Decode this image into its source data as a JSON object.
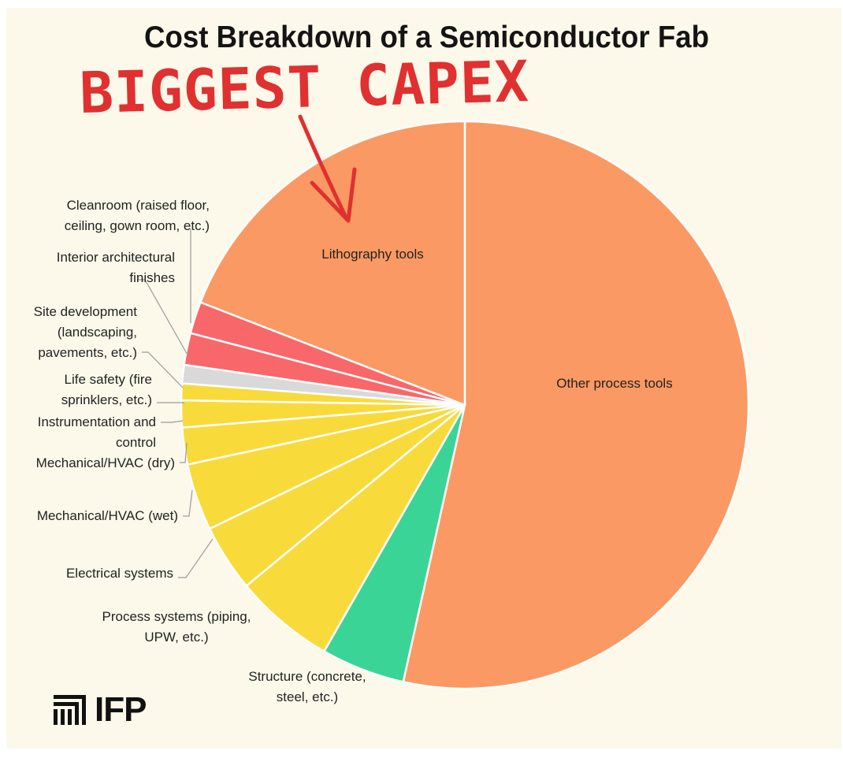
{
  "title": "Cost Breakdown of a Semiconductor Fab",
  "annotation": "BIGGEST CAPEX",
  "logo": {
    "text": "IFP",
    "icon": "ifp-logo-icon"
  },
  "colors": {
    "background": "#fcf8ea",
    "process_tools": "#fa9963",
    "facility_red": "#f8676a",
    "life_safety": "#d9d9d9",
    "building_systems": "#f8da3b",
    "structure": "#3ad596",
    "annotation": "#e03030"
  },
  "chart_data": {
    "type": "pie",
    "title": "Cost Breakdown of a Semiconductor Fab",
    "unit": "share of fab construction cost (%)",
    "start": "12 o'clock, clockwise",
    "slices": [
      {
        "label": "Other process tools",
        "value": 56.0,
        "color": "#fa9963",
        "label_position": "inside"
      },
      {
        "label": "Structure (concrete, steel, etc.)",
        "value": 5.0,
        "color": "#3ad596",
        "label_position": "outside"
      },
      {
        "label": "Process systems (piping, UPW, etc.)",
        "value": 6.0,
        "color": "#f8da3b",
        "label_position": "outside"
      },
      {
        "label": "Electrical systems",
        "value": 4.0,
        "color": "#f8da3b",
        "label_position": "outside"
      },
      {
        "label": "Mechanical/HVAC (wet)",
        "value": 4.0,
        "color": "#f8da3b",
        "label_position": "outside"
      },
      {
        "label": "Mechanical/HVAC (dry)",
        "value": 2.2,
        "color": "#f8da3b",
        "label_position": "outside"
      },
      {
        "label": "Instrumentation and control",
        "value": 1.6,
        "color": "#f8da3b",
        "label_position": "outside"
      },
      {
        "label": "Life safety (fire sprinklers, etc.)",
        "value": 1.0,
        "color": "#f8da3b",
        "label_position": "outside"
      },
      {
        "label": "Site development (landscaping, pavements, etc.)",
        "value": 1.1,
        "color": "#d9d9d9",
        "label_position": "outside"
      },
      {
        "label": "Interior architectural finishes",
        "value": 1.9,
        "color": "#f8676a",
        "label_position": "outside"
      },
      {
        "label": "Cleanroom (raised floor, ceiling, gown room, etc.)",
        "value": 1.9,
        "color": "#f8676a",
        "label_position": "outside"
      },
      {
        "label": "Lithography tools",
        "value": 20.0,
        "color": "#fa9963",
        "label_position": "inside"
      }
    ],
    "outside_label_lines": {
      "Cleanroom (raised floor, ceiling, gown room, etc.)": [
        "Cleanroom (raised floor,",
        "ceiling, gown room, etc.)"
      ],
      "Interior architectural finishes": [
        "Interior architectural",
        "finishes"
      ],
      "Site development (landscaping, pavements, etc.)": [
        "Site development",
        "(landscaping,",
        "pavements, etc.)"
      ],
      "Life safety (fire sprinklers, etc.)": [
        "Life safety (fire",
        "sprinklers, etc.)"
      ],
      "Instrumentation and control": [
        "Instrumentation and",
        "control"
      ],
      "Mechanical/HVAC (dry)": [
        "Mechanical/HVAC (dry)"
      ],
      "Mechanical/HVAC (wet)": [
        "Mechanical/HVAC (wet)"
      ],
      "Electrical systems": [
        "Electrical systems"
      ],
      "Process systems (piping, UPW, etc.)": [
        "Process systems (piping,",
        "UPW, etc.)"
      ],
      "Structure (concrete, steel, etc.)": [
        "Structure (concrete,",
        "steel, etc.)"
      ]
    }
  }
}
